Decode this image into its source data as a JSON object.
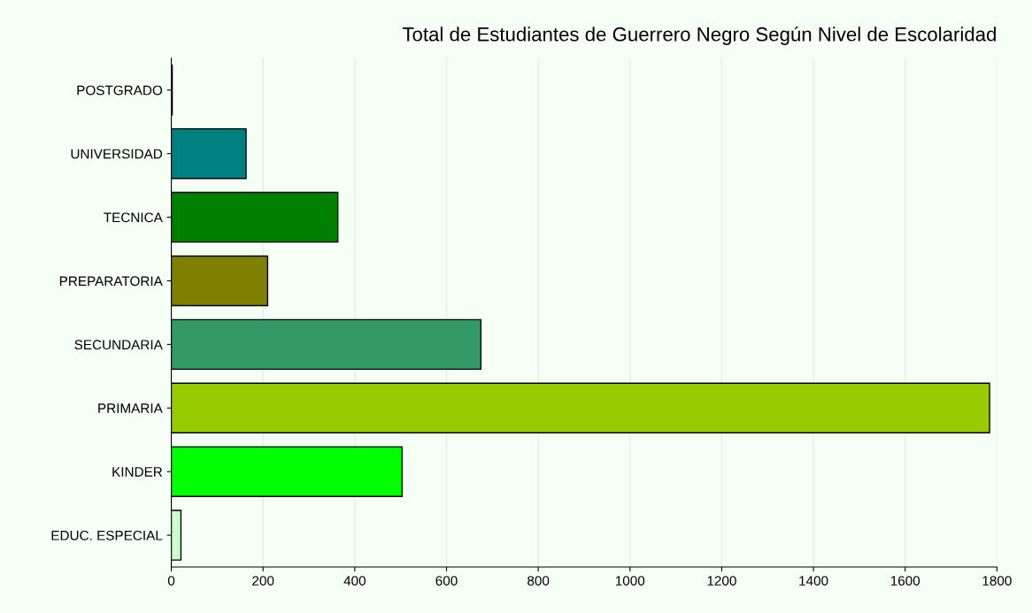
{
  "chart_data": {
    "type": "bar",
    "orientation": "horizontal",
    "title": "Total de Estudiantes de Guerrero Negro Según Nivel de Escolaridad",
    "categories": [
      "POSTGRADO",
      "UNIVERSIDAD",
      "TECNICA",
      "PREPARATORIA",
      "SECUNDARIA",
      "PRIMARIA",
      "KINDER",
      "EDUC. ESPECIAL"
    ],
    "values": [
      2,
      163,
      363,
      210,
      675,
      1784,
      503,
      21
    ],
    "colors": [
      "#002000",
      "#008080",
      "#008000",
      "#808000",
      "#339966",
      "#99cc00",
      "#00ff00",
      "#ccffcc"
    ],
    "xlim": [
      0,
      1800
    ],
    "xticks": [
      0,
      200,
      400,
      600,
      800,
      1000,
      1200,
      1400,
      1600,
      1800
    ],
    "grid": "x",
    "legend": false
  }
}
